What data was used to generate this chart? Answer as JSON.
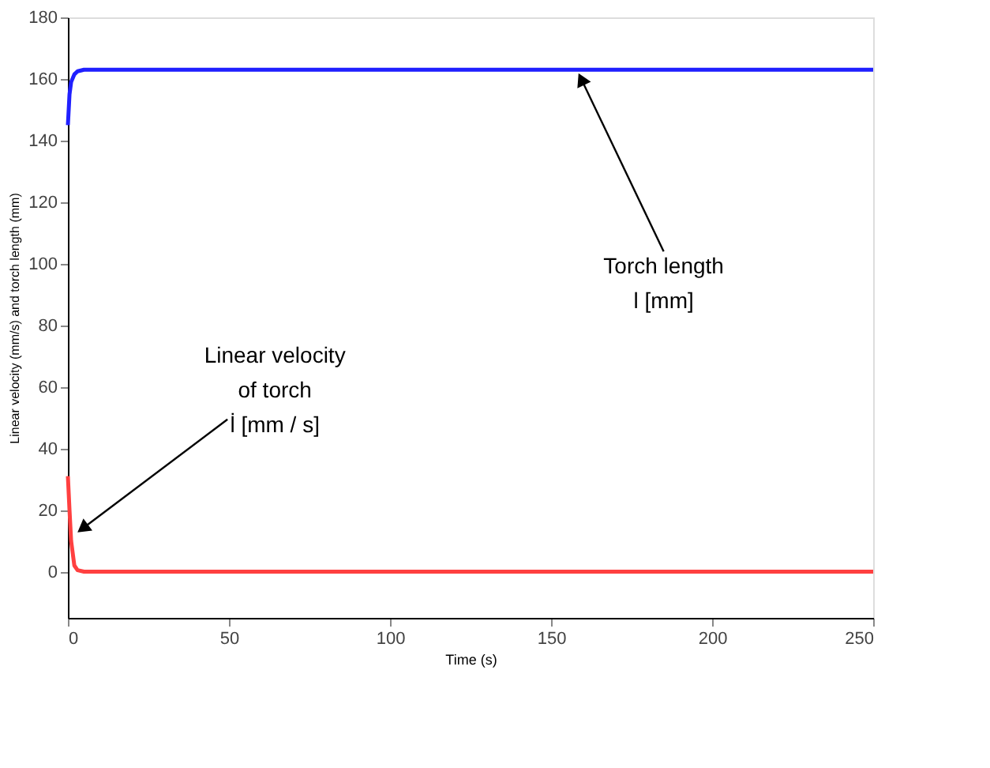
{
  "chart_data": {
    "type": "line",
    "xlabel": "Time (s)",
    "ylabel": "Linear velocity (mm/s) and torch length (mm)",
    "xlim": [
      0,
      250
    ],
    "xticks": [
      0,
      50,
      100,
      150,
      200,
      250
    ],
    "ylim": [
      -15,
      180
    ],
    "yticks": [
      0,
      20,
      40,
      60,
      80,
      100,
      120,
      140,
      160,
      180
    ],
    "grid": false,
    "line_style": "solid",
    "marker": "none",
    "series": [
      {
        "color": "#2020ff",
        "x": [
          0,
          0.5,
          1,
          2,
          3,
          5,
          250
        ],
        "values": [
          145,
          155,
          159,
          161.5,
          162.5,
          163,
          163
        ]
      },
      {
        "color": "#ff4040",
        "x": [
          0,
          0.5,
          1,
          2,
          3,
          5,
          250
        ],
        "values": [
          31,
          20,
          10,
          2,
          0.5,
          0,
          0
        ]
      }
    ],
    "annotations": [
      {
        "text": "Torch length\nl [mm]",
        "x": 158,
        "y": 163
      },
      {
        "text": "Linear velocity\nof torch\nl̇ [mm / s]",
        "x": 2,
        "y": 12
      }
    ]
  }
}
